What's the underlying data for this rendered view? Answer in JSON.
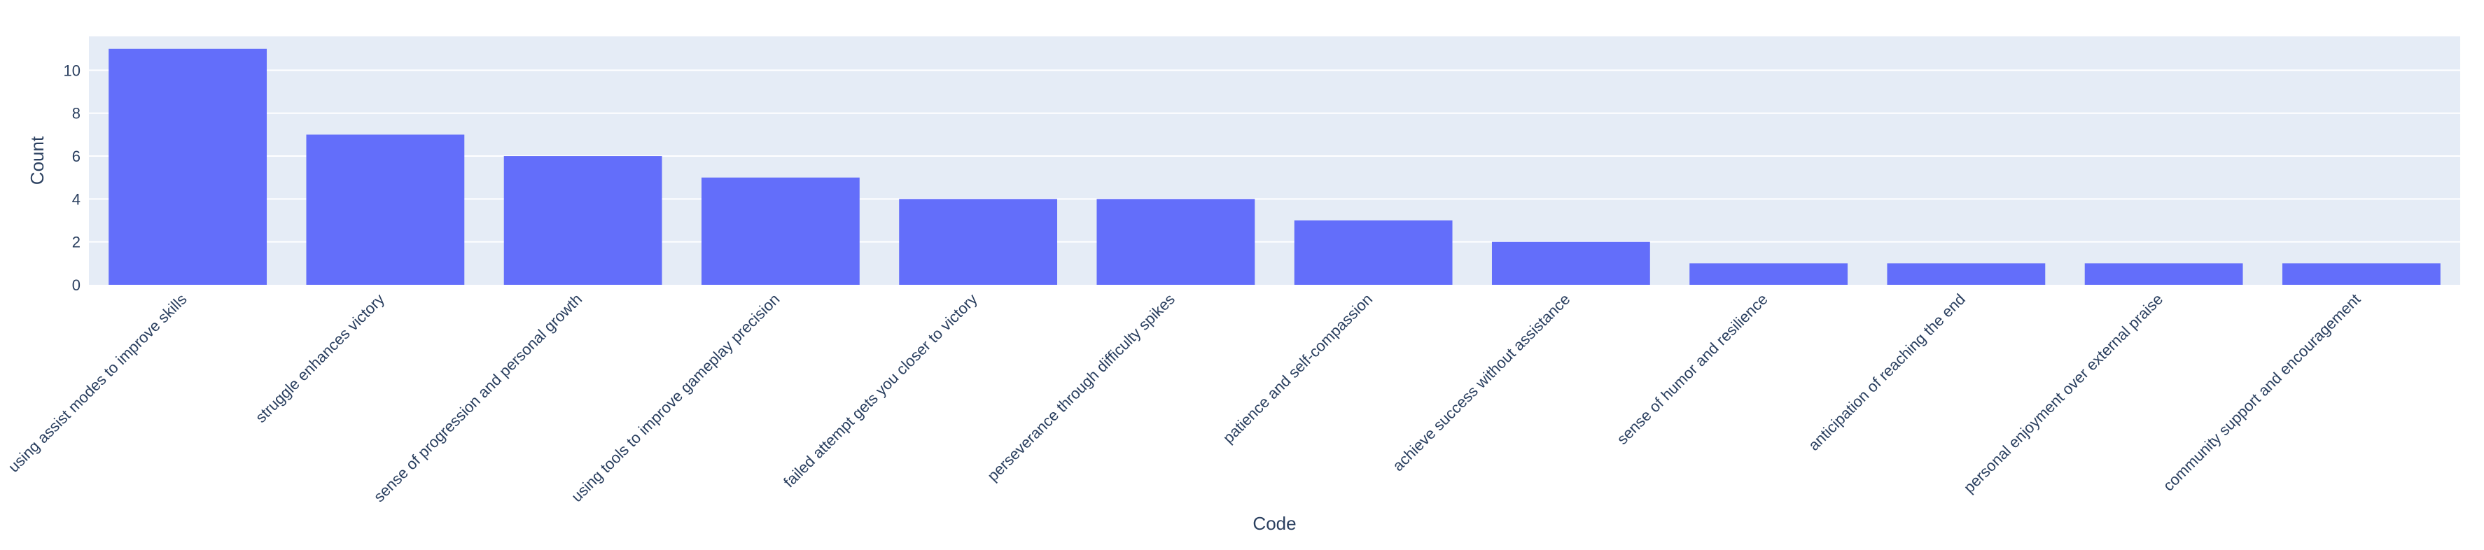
{
  "chart_data": {
    "type": "bar",
    "title": "",
    "xlabel": "Code",
    "ylabel": "Count",
    "ylim": [
      0,
      11.58
    ],
    "yticks": [
      0,
      2,
      4,
      6,
      8,
      10
    ],
    "grid": true,
    "colors": {
      "bar": "#636efa",
      "plot_bg": "#e5ecf6",
      "grid": "#ffffff",
      "text": "#2a3f5f"
    },
    "categories": [
      "using assist modes to improve skills",
      "struggle enhances victory",
      "sense of progression and personal growth",
      "using tools to improve gameplay precision",
      "failed attempt gets you closer to victory",
      "perseverance through difficulty spikes",
      "patience and self-compassion",
      "achieve success without assistance",
      "sense of humor and resilience",
      "anticipation of reaching the end",
      "personal enjoyment over external praise",
      "community support and encouragement"
    ],
    "values": [
      11,
      7,
      6,
      5,
      4,
      4,
      3,
      2,
      1,
      1,
      1,
      1
    ]
  }
}
